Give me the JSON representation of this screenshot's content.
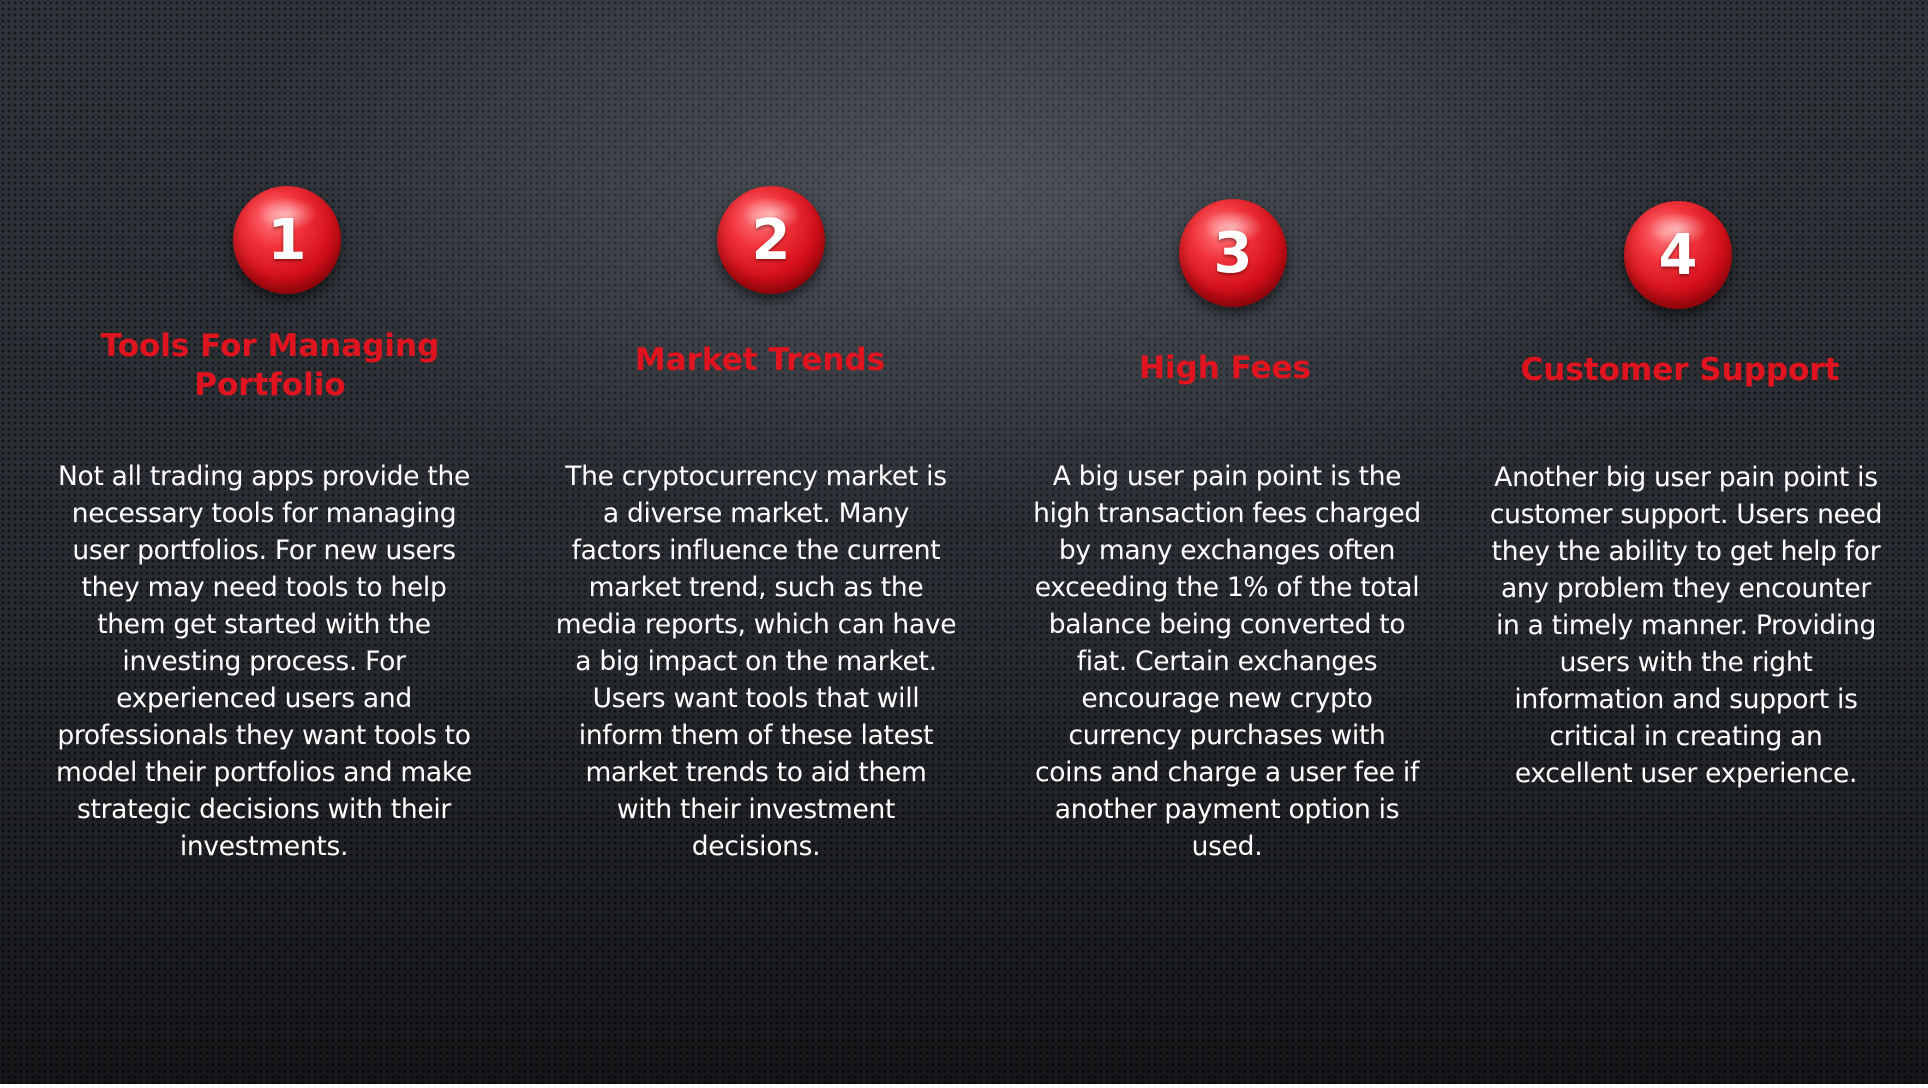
{
  "items": [
    {
      "number": "1",
      "title": "Tools For Managing Portfolio",
      "body": "Not all trading apps provide the necessary tools for managing user portfolios. For new users they may need tools to help them get started with the investing process. For experienced users and professionals they want tools to model their portfolios and make strategic decisions with their investments."
    },
    {
      "number": "2",
      "title": "Market Trends",
      "body": "The cryptocurrency market is a diverse market. Many factors influence the current market trend, such as the media reports, which can have a big impact on the market. Users want tools that will inform them of these latest market trends to aid them with their investment decisions."
    },
    {
      "number": "3",
      "title": "High Fees",
      "body": "A big user pain point is the high transaction fees charged by many exchanges often exceeding the 1% of the total balance being converted to fiat. Certain exchanges encourage new crypto currency purchases with coins and charge a user fee if another payment option is used."
    },
    {
      "number": "4",
      "title": "Customer Support",
      "body": "Another big user pain point is customer support. Users need they the ability to get help for any problem they encounter in a timely manner. Providing users with the right information and support is critical in creating an excellent user experience."
    }
  ]
}
